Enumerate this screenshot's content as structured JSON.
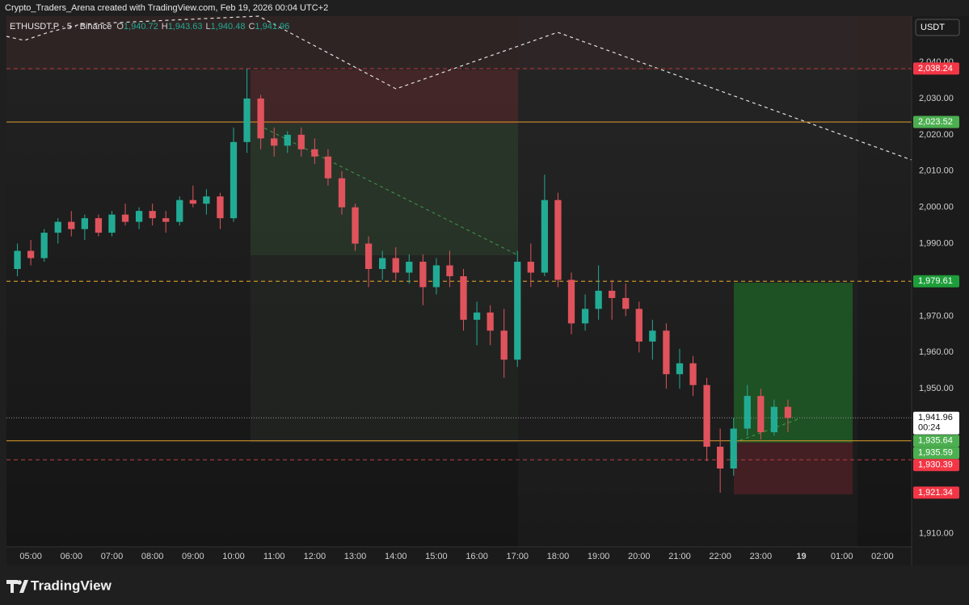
{
  "header": "Crypto_Traders_Arena created with TradingView.com, Feb 19, 2026 00:04 UTC+2",
  "brand": "TradingView",
  "legend": {
    "symbol": "ETHUSDT.P · 5 · Binance",
    "ohlc": [
      {
        "key": "O",
        "value": "1,940.72"
      },
      {
        "key": "H",
        "value": "1,943.63"
      },
      {
        "key": "L",
        "value": "1,940.48"
      },
      {
        "key": "C",
        "value": "1,941.96"
      }
    ]
  },
  "chart_data": {
    "type": "candlestick",
    "currency": "USDT",
    "up_color": "#22ab94",
    "down_color": "#e0535c",
    "x": [
      4.67,
      5,
      5.33,
      5.67,
      6,
      6.33,
      6.67,
      7,
      7.33,
      7.67,
      8,
      8.33,
      8.67,
      9,
      9.33,
      9.67,
      10,
      10.33,
      10.67,
      11,
      11.33,
      11.67,
      12,
      12.33,
      12.67,
      13,
      13.33,
      13.67,
      14,
      14.33,
      14.67,
      15,
      15.33,
      15.67,
      16,
      16.33,
      16.67,
      17,
      17.33,
      17.67,
      18,
      18.33,
      18.67,
      19,
      19.33,
      19.67,
      20,
      20.33,
      20.67,
      21,
      21.33,
      21.67,
      22,
      22.33,
      22.67,
      23,
      23.33,
      23.67
    ],
    "open": [
      1983,
      1988,
      1986,
      1993,
      1996,
      1994,
      1997,
      1993,
      1998,
      1996,
      1999,
      1997,
      1996,
      2002,
      2001,
      2003,
      1997,
      2018,
      2030,
      2019,
      2017,
      2020,
      2016,
      2014,
      2008,
      2000,
      1990,
      1983,
      1986,
      1982,
      1985,
      1978,
      1984,
      1981,
      1969,
      1971,
      1966,
      1958,
      1985,
      1982,
      2002,
      1980,
      1968,
      1972,
      1977,
      1975,
      1972,
      1963,
      1966,
      1954,
      1957,
      1951,
      1934,
      1928,
      1939,
      1948,
      1938,
      1945
    ],
    "high": [
      1990,
      1991,
      1994,
      1997,
      1999,
      1998,
      1998,
      1999,
      2001,
      2000,
      2001,
      1999,
      2003,
      2006,
      2005,
      2004,
      2022,
      2038.24,
      2031,
      2022,
      2021,
      2022,
      2019,
      2016,
      2010,
      2001,
      1992,
      1988,
      1989,
      1987,
      1987,
      1986,
      1988,
      1983,
      1974,
      1973,
      1972,
      1988,
      1990,
      2009,
      2004,
      1982,
      1976,
      1984,
      1980,
      1979,
      1974,
      1969,
      1968,
      1961,
      1959,
      1953,
      1939,
      1942,
      1951,
      1950,
      1947,
      1947
    ],
    "low": [
      1981,
      1984,
      1985,
      1990,
      1992,
      1991,
      1992,
      1992,
      1995,
      1994,
      1995,
      1993,
      1995,
      2000,
      1998,
      1994,
      1996,
      2015,
      2016,
      2014,
      2015,
      2014,
      2012,
      2006,
      1998,
      1988,
      1978,
      1980,
      1980,
      1979,
      1973,
      1976,
      1978,
      1966,
      1962,
      1962,
      1953,
      1956,
      1978,
      1981,
      1978,
      1965,
      1966,
      1969,
      1969,
      1970,
      1960,
      1958,
      1950,
      1950,
      1948,
      1930,
      1921.34,
      1926,
      1937,
      1936,
      1937,
      1938
    ],
    "close": [
      1988,
      1986,
      1993,
      1996,
      1994,
      1997,
      1993,
      1998,
      1996,
      1999,
      1997,
      1996,
      2002,
      2001,
      2003,
      1997,
      2018,
      2030,
      2019,
      2017,
      2020,
      2016,
      2014,
      2008,
      2000,
      1990,
      1983,
      1986,
      1982,
      1985,
      1978,
      1984,
      1981,
      1969,
      1971,
      1966,
      1958,
      1985,
      1982,
      2002,
      1980,
      1968,
      1972,
      1977,
      1975,
      1972,
      1963,
      1966,
      1954,
      1957,
      1951,
      1934,
      1928,
      1939,
      1948,
      1938,
      1945,
      1941.96
    ],
    "xlim": [
      4.4,
      26.72
    ],
    "xticks": [
      {
        "value": 5,
        "label": "05:00"
      },
      {
        "value": 6,
        "label": "06:00"
      },
      {
        "value": 7,
        "label": "07:00"
      },
      {
        "value": 8,
        "label": "08:00"
      },
      {
        "value": 9,
        "label": "09:00"
      },
      {
        "value": 10,
        "label": "10:00"
      },
      {
        "value": 11,
        "label": "11:00"
      },
      {
        "value": 12,
        "label": "12:00"
      },
      {
        "value": 13,
        "label": "13:00"
      },
      {
        "value": 14,
        "label": "14:00"
      },
      {
        "value": 15,
        "label": "15:00"
      },
      {
        "value": 16,
        "label": "16:00"
      },
      {
        "value": 17,
        "label": "17:00"
      },
      {
        "value": 18,
        "label": "18:00"
      },
      {
        "value": 19,
        "label": "19:00"
      },
      {
        "value": 20,
        "label": "20:00"
      },
      {
        "value": 21,
        "label": "21:00"
      },
      {
        "value": 22,
        "label": "22:00"
      },
      {
        "value": 23,
        "label": "23:00"
      },
      {
        "value": 24,
        "label": "19"
      },
      {
        "value": 25,
        "label": "01:00"
      },
      {
        "value": 26,
        "label": "02:00"
      }
    ],
    "ylim": [
      1906.4,
      2052.7
    ],
    "yticks": [
      {
        "value": 1910,
        "label": "1,910.00"
      },
      {
        "value": 1950,
        "label": "1,950.00"
      },
      {
        "value": 1960,
        "label": "1,960.00"
      },
      {
        "value": 1970,
        "label": "1,970.00"
      },
      {
        "value": 1990,
        "label": "1,990.00"
      },
      {
        "value": 2000,
        "label": "2,000.00"
      },
      {
        "value": 2010,
        "label": "2,010.00"
      },
      {
        "value": 2020,
        "label": "2,020.00"
      },
      {
        "value": 2030,
        "label": "2,030.00"
      },
      {
        "value": 2040,
        "label": "2,040.00"
      }
    ],
    "price_tags": [
      {
        "value": 2038.24,
        "label": "2,038.24",
        "color": "#f23645",
        "line": "dashed",
        "line_color": "#a0383c"
      },
      {
        "value": 2023.52,
        "label": "2,023.52",
        "color": "#4caf50",
        "line": "solid",
        "line_color": "#c8902a"
      },
      {
        "value": 1979.61,
        "label": "1,979.61",
        "color": "#1e9e3a",
        "line": "dashed",
        "line_color": "#c8902a"
      },
      {
        "value": 1941.96,
        "label": "1,941.96",
        "sub": "00:24",
        "color": "#ffffff",
        "line": "dotted",
        "line_color": "#8a8a8a"
      },
      {
        "value": 1935.64,
        "label": "1,935.64",
        "color": "#4caf50",
        "line": "solid",
        "line_color": "#c8902a"
      },
      {
        "value": 1935.59,
        "label": "1,935.59",
        "color": "#4caf50",
        "line": "none",
        "line_color": "#c8902a"
      },
      {
        "value": 1930.39,
        "label": "1,930.39",
        "color": "#f23645",
        "line": "dashed",
        "line_color": "#a0383c"
      },
      {
        "value": 1921.34,
        "label": "1,921.34",
        "color": "#f23645",
        "line": "none",
        "line_color": "#a0383c"
      }
    ]
  }
}
